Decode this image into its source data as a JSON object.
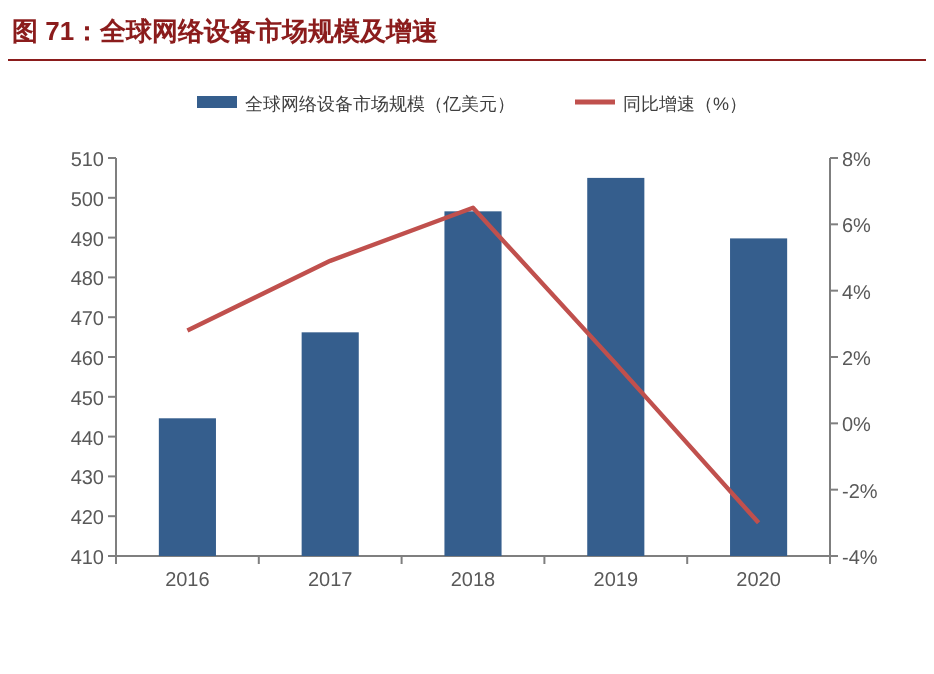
{
  "chart_data": {
    "type": "bar",
    "title": "图 71：全球网络设备市场规模及增速",
    "categories": [
      "2016",
      "2017",
      "2018",
      "2019",
      "2020"
    ],
    "series": [
      {
        "name": "全球网络设备市场规模（亿美元）",
        "color": "#355e8d",
        "values": [
          444.6,
          466.2,
          496.6,
          505,
          489.8
        ]
      },
      {
        "name": "同比增速（%）",
        "type": "line",
        "axis": "y2",
        "color": "#c0504d",
        "values": [
          2.8,
          4.9,
          6.5,
          1.8,
          -3.0
        ]
      }
    ],
    "ylim": [
      410,
      510
    ],
    "yticks": [
      410,
      420,
      430,
      440,
      450,
      460,
      470,
      480,
      490,
      500,
      510
    ],
    "y2lim": [
      -4,
      8
    ],
    "y2ticks": [
      {
        "value": -4,
        "label": "-4%"
      },
      {
        "value": -2,
        "label": "-2%"
      },
      {
        "value": 0,
        "label": "0%"
      },
      {
        "value": 2,
        "label": "2%"
      },
      {
        "value": 4,
        "label": "4%"
      },
      {
        "value": 6,
        "label": "6%"
      },
      {
        "value": 8,
        "label": "8%"
      }
    ],
    "legend": "top",
    "grid": false,
    "marker": "none"
  }
}
